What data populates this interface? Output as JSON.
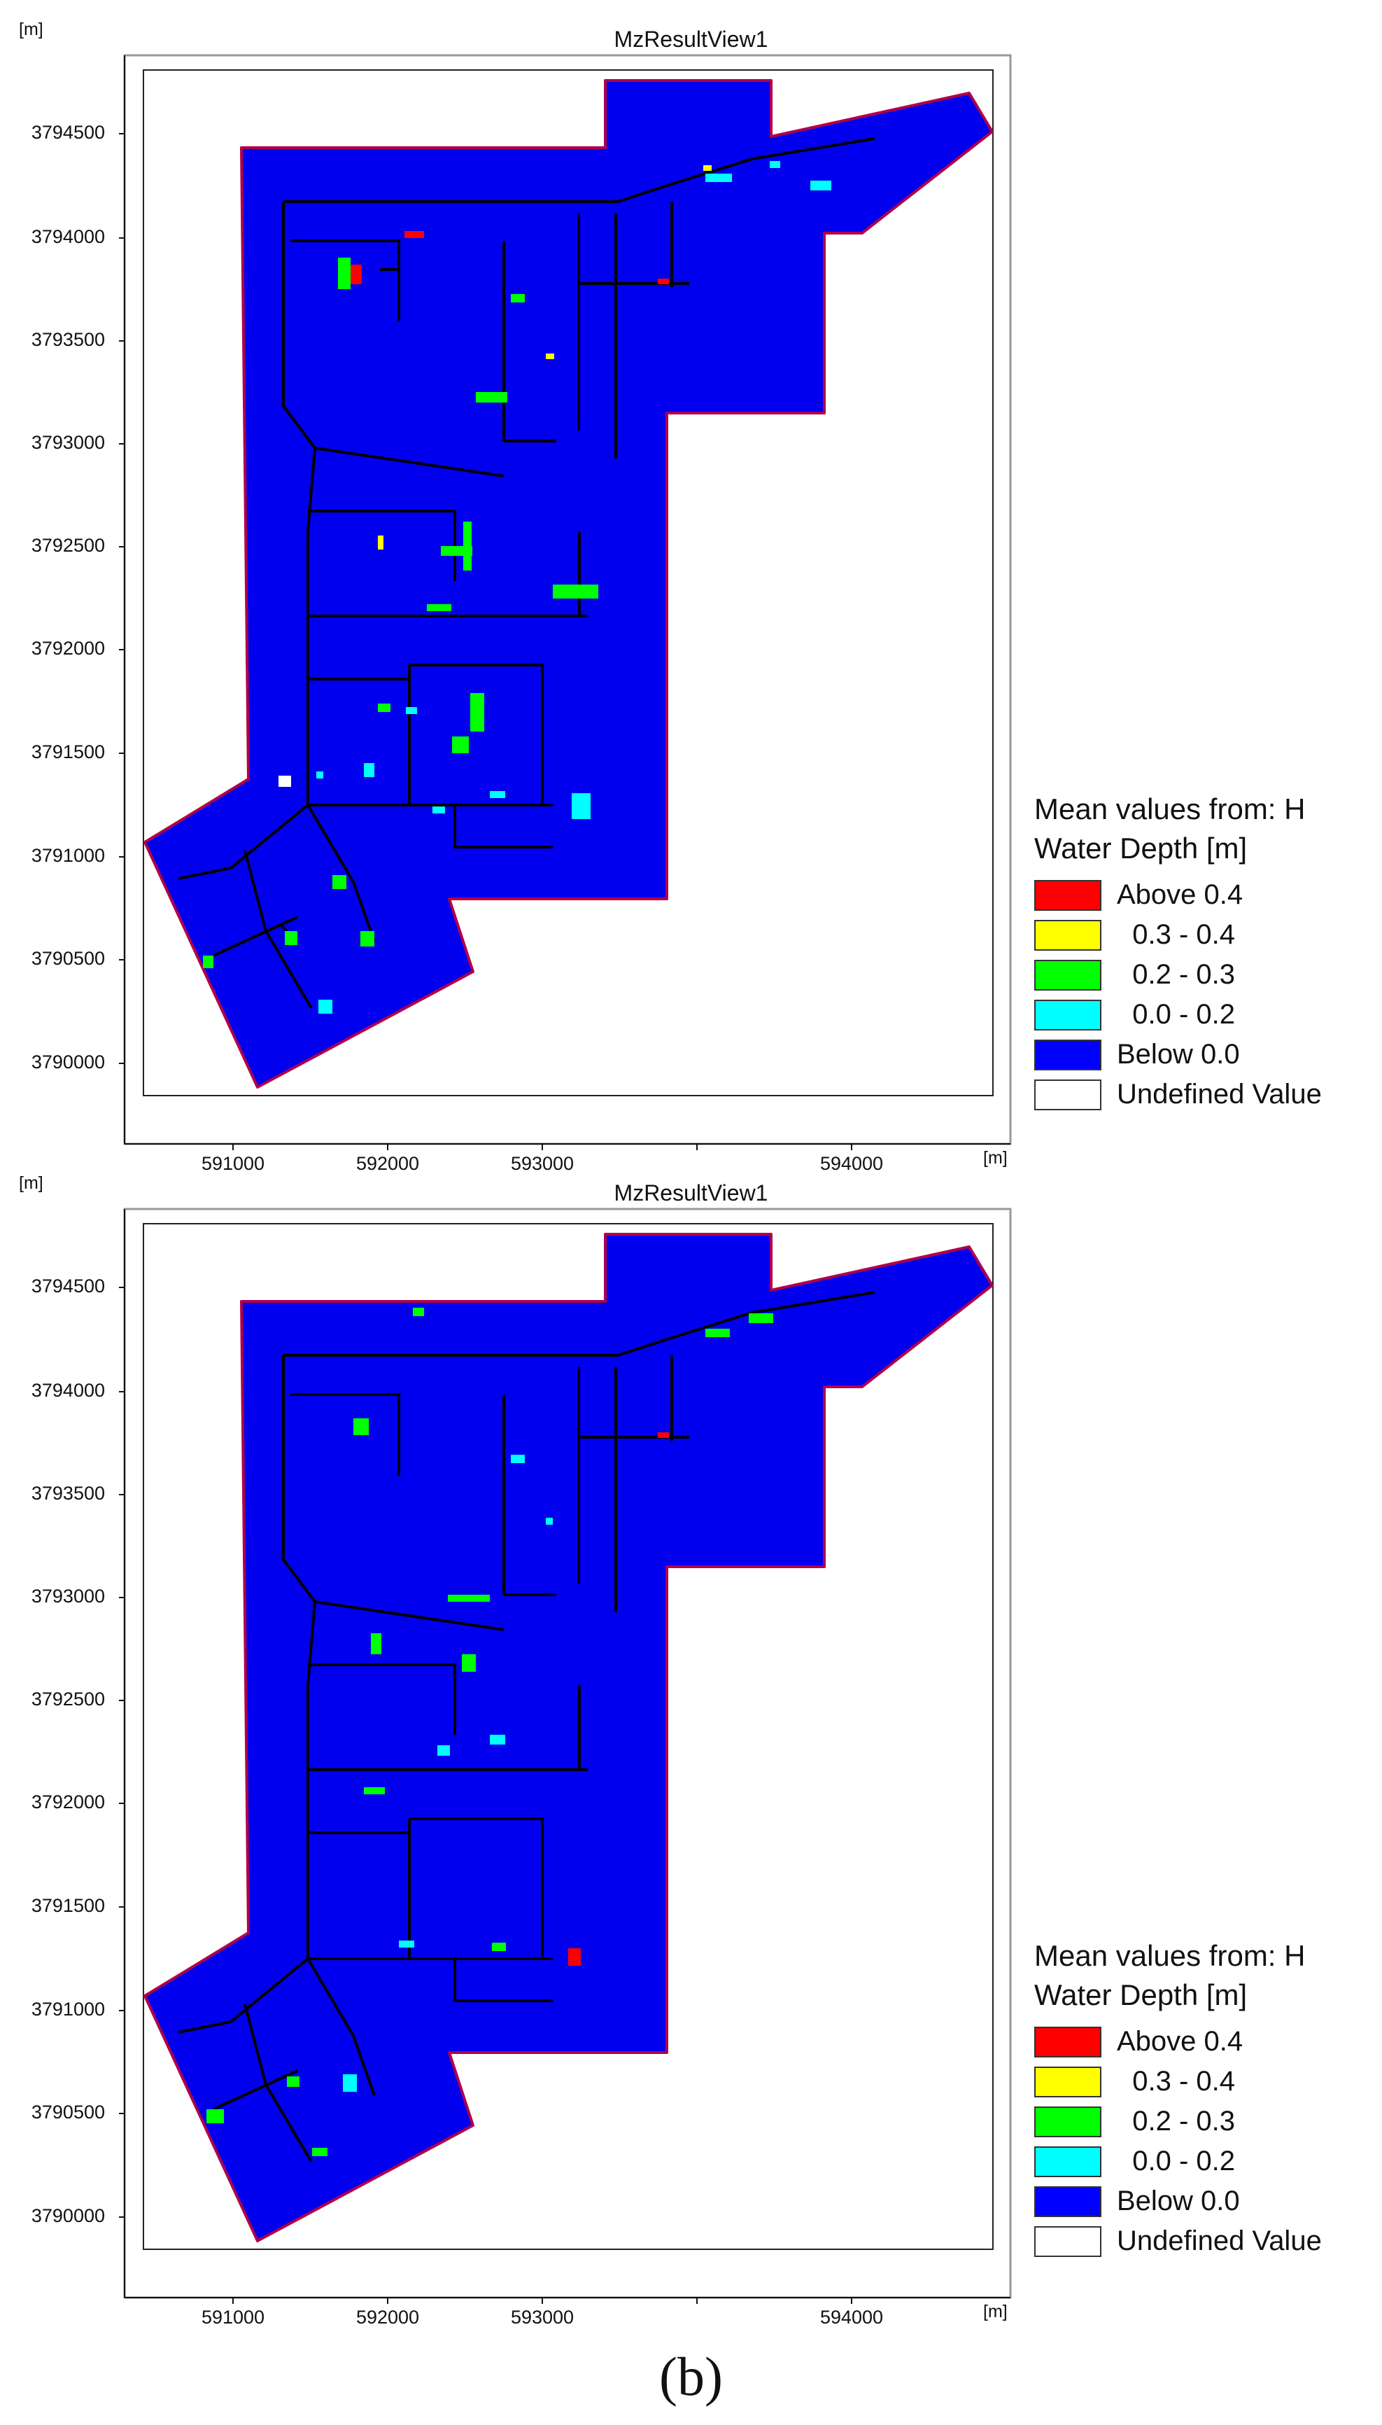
{
  "views": [
    {
      "title": "MzResultView1",
      "y_unit": "[m]",
      "x_unit": "[m]",
      "y_ticks": [
        "3794500",
        "3794000",
        "3793500",
        "3793000",
        "3792500",
        "3792000",
        "3791500",
        "3791000",
        "3790500",
        "3790000"
      ],
      "x_ticks": [
        "591000",
        "592000",
        "593000",
        "594000"
      ],
      "legend": {
        "heading1": "Mean values from: H",
        "heading2": "Water Depth [m]",
        "items": [
          {
            "label": "Above 0.4",
            "color": "#ff0000"
          },
          {
            "label": "  0.3 - 0.4",
            "color": "#ffff00"
          },
          {
            "label": "  0.2 - 0.3",
            "color": "#00ff00"
          },
          {
            "label": "  0.0 - 0.2",
            "color": "#00ffff"
          },
          {
            "label": "Below 0.0",
            "color": "#0000ff"
          },
          {
            "label": "Undefined Value",
            "color": "#ffffff"
          }
        ]
      }
    },
    {
      "title": "MzResultView1",
      "y_unit": "[m]",
      "x_unit": "[m]",
      "y_ticks": [
        "3794500",
        "3794000",
        "3793500",
        "3793000",
        "3792500",
        "3792000",
        "3791500",
        "3791000",
        "3790500",
        "3790000"
      ],
      "x_ticks": [
        "591000",
        "592000",
        "593000",
        "594000"
      ],
      "legend": {
        "heading1": "Mean values from: H",
        "heading2": "Water Depth [m]",
        "items": [
          {
            "label": "Above 0.4",
            "color": "#ff0000"
          },
          {
            "label": "  0.3 - 0.4",
            "color": "#ffff00"
          },
          {
            "label": "  0.2 - 0.3",
            "color": "#00ff00"
          },
          {
            "label": "  0.0 - 0.2",
            "color": "#00ffff"
          },
          {
            "label": "Below 0.0",
            "color": "#0000ff"
          },
          {
            "label": "Undefined Value",
            "color": "#ffffff"
          }
        ]
      }
    }
  ],
  "caption": "(b)",
  "colors": {
    "domain_fill": "#0000ee",
    "domain_outline": "#b0004a",
    "network": "#000000"
  }
}
